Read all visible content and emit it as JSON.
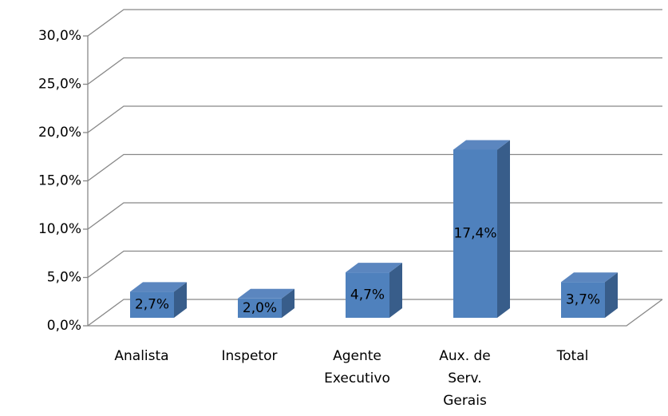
{
  "chart_data": {
    "type": "bar3d",
    "categories": [
      "Analista",
      "Inspetor",
      "Agente\nExecutivo",
      "Aux. de\nServ.\nGerais",
      "Total"
    ],
    "values": [
      2.7,
      2.0,
      4.7,
      17.4,
      3.7
    ],
    "value_labels": [
      "2,7%",
      "2,0%",
      "4,7%",
      "17,4%",
      "3,7%"
    ],
    "color": "#4f81bd",
    "ylim": [
      0,
      30
    ],
    "yticks": [
      {
        "value": 0,
        "label": "0,0%"
      },
      {
        "value": 5,
        "label": "5,0%"
      },
      {
        "value": 10,
        "label": "10,0%"
      },
      {
        "value": 15,
        "label": "15,0%"
      },
      {
        "value": 20,
        "label": "20,0%"
      },
      {
        "value": 25,
        "label": "25,0%"
      },
      {
        "value": 30,
        "label": "30,0%"
      }
    ],
    "grid": true
  }
}
